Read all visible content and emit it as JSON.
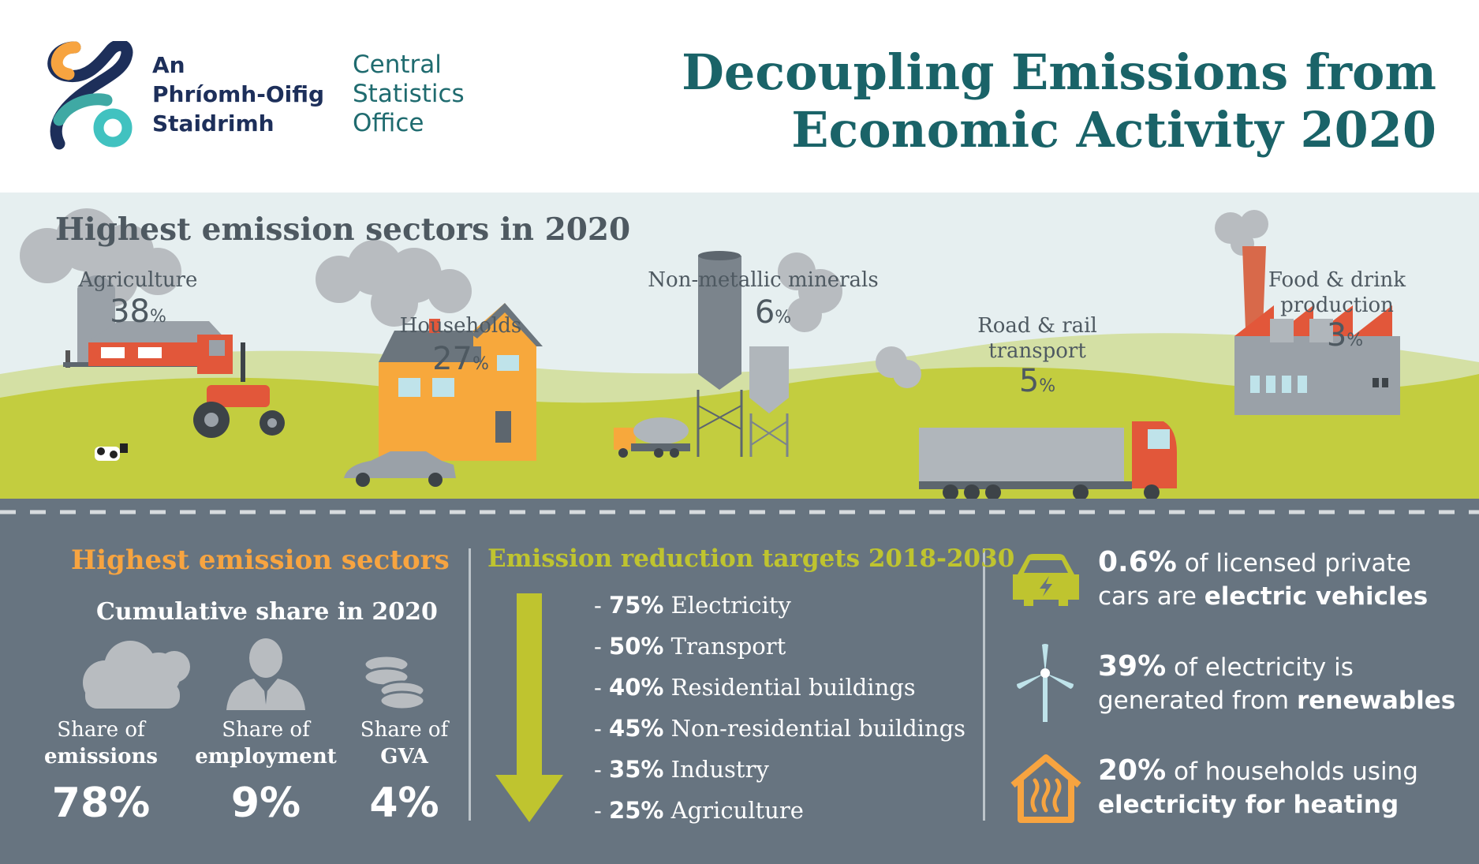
{
  "header": {
    "logo_irish": [
      "An",
      "Phríomh-Oifig",
      "Staidrimh"
    ],
    "logo_english": [
      "Central",
      "Statistics",
      "Office"
    ],
    "title_line1": "Decoupling Emissions from",
    "title_line2": "Economic Activity 2020"
  },
  "scene": {
    "title": "Highest emission sectors in 2020",
    "sectors": [
      {
        "name": "Agriculture",
        "value": "38",
        "unit": "%"
      },
      {
        "name": "Households",
        "value": "27",
        "unit": "%"
      },
      {
        "name": "Non-metallic minerals",
        "value": "6",
        "unit": "%"
      },
      {
        "name_line1": "Road & rail",
        "name_line2": "transport",
        "value": "5",
        "unit": "%"
      },
      {
        "name_line1": "Food & drink",
        "name_line2": "production",
        "value": "3",
        "unit": "%"
      }
    ]
  },
  "cumulative": {
    "heading": "Highest emission sectors",
    "subheading": "Cumulative share in 2020",
    "items": [
      {
        "label1": "Share of",
        "label2": "emissions",
        "value": "78%",
        "icon": "cloud-icon"
      },
      {
        "label1": "Share of",
        "label2": "employment",
        "value": "9%",
        "icon": "person-icon"
      },
      {
        "label1": "Share of",
        "label2": "GVA",
        "value": "4%",
        "icon": "coins-icon"
      }
    ]
  },
  "targets": {
    "heading": "Emission reduction targets 2018-2030",
    "items": [
      {
        "prefix": "- ",
        "pct": "75%",
        "label": " Electricity"
      },
      {
        "prefix": "- ",
        "pct": "50%",
        "label": " Transport"
      },
      {
        "prefix": "- ",
        "pct": "40%",
        "label": " Residential buildings"
      },
      {
        "prefix": "- ",
        "pct": "45%",
        "label": " Non-residential buildings"
      },
      {
        "prefix": "- ",
        "pct": "35%",
        "label": " Industry"
      },
      {
        "prefix": "- ",
        "pct": "25%",
        "label": " Agriculture"
      }
    ]
  },
  "facts": [
    {
      "big": "0.6%",
      "text1": " of licensed private",
      "text2": "cars are ",
      "bold2": "electric vehicles",
      "icon": "electric-car-icon"
    },
    {
      "big": "39%",
      "text1": " of electricity is",
      "text2": "generated from ",
      "bold2": "renewables",
      "icon": "wind-turbine-icon"
    },
    {
      "big": "20%",
      "text1": " of households using",
      "text2": "",
      "bold2": "electricity for heating",
      "icon": "heated-house-icon"
    }
  ],
  "colors": {
    "title": "#1a6368",
    "panel": "#677480",
    "orange": "#f7a440",
    "green": "#bfc42f",
    "grass": "#c3cd3f",
    "scene_bg": "#e6eff0"
  }
}
